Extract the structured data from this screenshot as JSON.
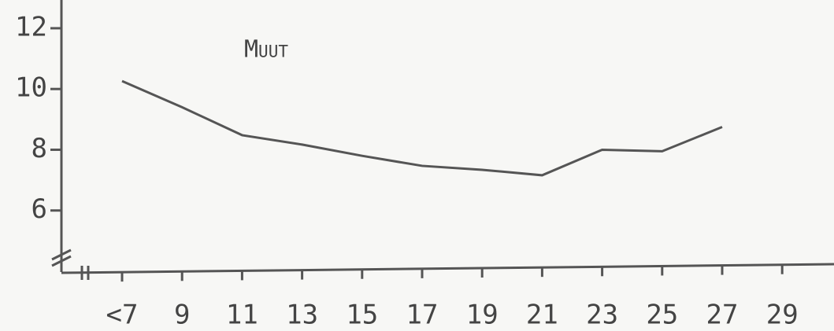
{
  "chart_data": {
    "type": "line",
    "annotation": "Muut",
    "categories": [
      "<7",
      "9",
      "11",
      "13",
      "15",
      "17",
      "19",
      "21",
      "23",
      "25",
      "27",
      "29"
    ],
    "series": [
      {
        "color": "#555555",
        "values": [
          10.26,
          9.4,
          8.48,
          8.17,
          7.8,
          7.47,
          7.34,
          7.16,
          8.0,
          7.95,
          8.75,
          null
        ]
      }
    ],
    "ylim": [
      4,
      12.93
    ],
    "yticks": [
      6,
      8,
      10,
      12
    ]
  }
}
